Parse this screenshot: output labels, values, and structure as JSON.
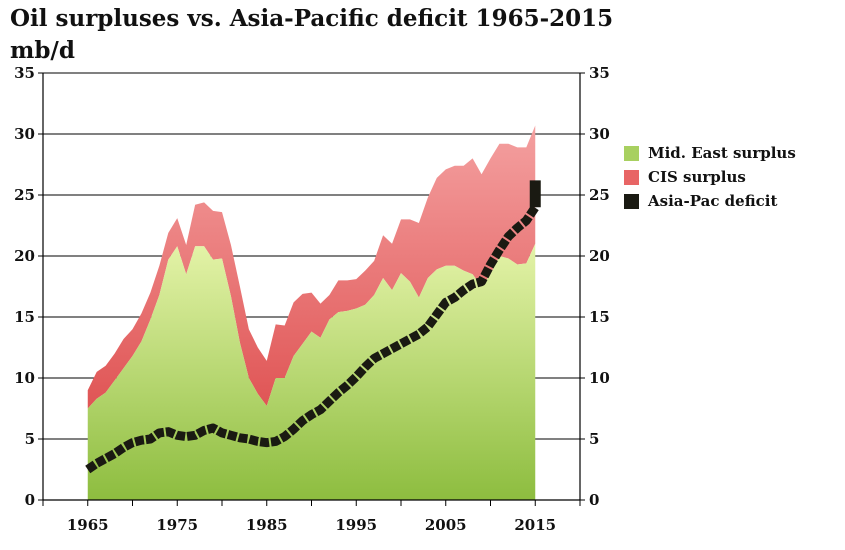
{
  "header": {
    "title": "Oil surpluses vs.  Asia-Pacific deficit 1965-2015",
    "subtitle": "mb/d"
  },
  "colors": {
    "mideast_top": "#e4f3a8",
    "mideast_bottom": "#8dbd3f",
    "cis_top": "#f4a0a0",
    "cis_bottom": "#d93c3c",
    "asia_line": "#1a1a12",
    "gridline": "#000000"
  },
  "legend": [
    {
      "name": "Mid. East surplus",
      "color": "#a8d060"
    },
    {
      "name": "CIS surplus",
      "color": "#e86565"
    },
    {
      "name": "Asia-Pac deficit",
      "color": "#1a1a12"
    }
  ],
  "chart_data": {
    "type": "area",
    "title": "Oil surpluses vs.  Asia-Pacific deficit 1965-2015",
    "ylabel": "mb/d",
    "xlim": [
      1960,
      2020
    ],
    "ylim": [
      0,
      35
    ],
    "x_ticks": [
      1965,
      1975,
      1985,
      1995,
      2005,
      2015
    ],
    "y_ticks": [
      0,
      5,
      10,
      15,
      20,
      25,
      30,
      35
    ],
    "y_ticks_right": [
      0,
      5,
      10,
      15,
      20,
      25,
      30,
      35
    ],
    "grid": "horizontal",
    "legend_position": "right",
    "stacked": true,
    "x": [
      1965,
      1966,
      1967,
      1968,
      1969,
      1970,
      1971,
      1972,
      1973,
      1974,
      1975,
      1976,
      1977,
      1978,
      1979,
      1980,
      1981,
      1982,
      1983,
      1984,
      1985,
      1986,
      1987,
      1988,
      1989,
      1990,
      1991,
      1992,
      1993,
      1994,
      1995,
      1996,
      1997,
      1998,
      1999,
      2000,
      2001,
      2002,
      2003,
      2004,
      2005,
      2006,
      2007,
      2008,
      2009,
      2010,
      2011,
      2012,
      2013,
      2014,
      2015
    ],
    "series": [
      {
        "name": "Mid. East surplus",
        "kind": "area",
        "values": [
          7.5,
          8.3,
          8.8,
          9.8,
          10.8,
          11.8,
          13.0,
          14.8,
          16.8,
          19.7,
          20.8,
          18.5,
          20.8,
          20.8,
          19.7,
          19.8,
          16.7,
          12.9,
          10.0,
          8.7,
          7.7,
          10.0,
          10.0,
          11.8,
          12.8,
          13.8,
          13.3,
          14.8,
          15.4,
          15.5,
          15.7,
          16.0,
          16.8,
          18.2,
          17.2,
          18.6,
          17.9,
          16.6,
          18.2,
          18.9,
          19.2,
          19.2,
          18.8,
          18.5,
          17.5,
          18.5,
          20.0,
          19.8,
          19.3,
          19.4,
          21.0
        ]
      },
      {
        "name": "CIS surplus",
        "kind": "area-stacked",
        "values": [
          1.5,
          2.2,
          2.2,
          2.2,
          2.4,
          2.2,
          2.3,
          2.2,
          2.4,
          2.2,
          2.3,
          2.4,
          3.4,
          3.6,
          4.0,
          3.8,
          4.2,
          4.6,
          4.0,
          3.8,
          3.7,
          4.4,
          4.3,
          4.4,
          4.1,
          3.2,
          2.8,
          2.0,
          2.6,
          2.5,
          2.4,
          2.8,
          2.8,
          3.5,
          3.8,
          4.4,
          5.1,
          6.1,
          6.6,
          7.5,
          7.9,
          8.2,
          8.6,
          9.5,
          9.2,
          9.5,
          9.2,
          9.4,
          9.6,
          9.5,
          9.7
        ]
      },
      {
        "name": "Asia-Pac deficit",
        "kind": "line",
        "values": [
          2.5,
          3.0,
          3.4,
          3.8,
          4.3,
          4.7,
          4.9,
          5.0,
          5.5,
          5.6,
          5.3,
          5.2,
          5.3,
          5.7,
          5.9,
          5.5,
          5.3,
          5.1,
          5.0,
          4.8,
          4.7,
          4.8,
          5.2,
          5.8,
          6.5,
          7.0,
          7.4,
          8.1,
          8.8,
          9.4,
          10.1,
          10.9,
          11.6,
          12.0,
          12.4,
          12.8,
          13.2,
          13.6,
          14.2,
          15.2,
          16.2,
          16.6,
          17.2,
          17.7,
          17.9,
          19.3,
          20.5,
          21.6,
          22.3,
          22.9,
          24.0
        ]
      }
    ]
  }
}
